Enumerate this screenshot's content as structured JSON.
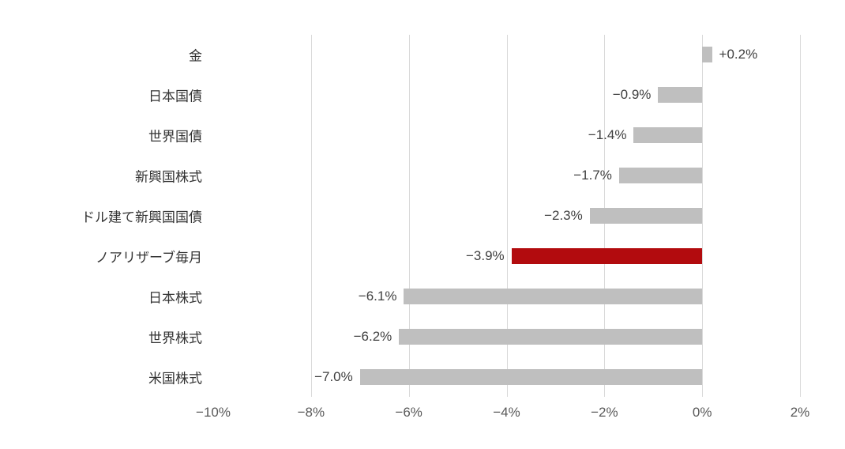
{
  "chart_data": {
    "type": "bar",
    "orientation": "horizontal",
    "title": "",
    "categories": [
      "金",
      "日本国債",
      "世界国債",
      "新興国株式",
      "ドル建て新興国国債",
      "ノアリザーブ毎月",
      "日本株式",
      "世界株式",
      "米国株式"
    ],
    "values": [
      0.2,
      -0.9,
      -1.4,
      -1.7,
      -2.3,
      -3.9,
      -6.1,
      -6.2,
      -7.0
    ],
    "value_labels": [
      "+0.2%",
      "−0.9%",
      "−1.4%",
      "−1.7%",
      "−2.3%",
      "−3.9%",
      "−6.1%",
      "−6.2%",
      "−7.0%"
    ],
    "highlight_index": 5,
    "bar_color": "#bfbfbf",
    "highlight_color": "#b20b0e",
    "xlim": [
      -10,
      2
    ],
    "x_ticks": [
      -10,
      -8,
      -6,
      -4,
      -2,
      0,
      2
    ],
    "x_tick_labels": [
      "−10%",
      "−8%",
      "−6%",
      "−4%",
      "−2%",
      "0%",
      "2%"
    ],
    "gridline_ticks": [
      -8,
      -6,
      -4,
      -2,
      0,
      2
    ],
    "grid": true,
    "legend": false
  }
}
